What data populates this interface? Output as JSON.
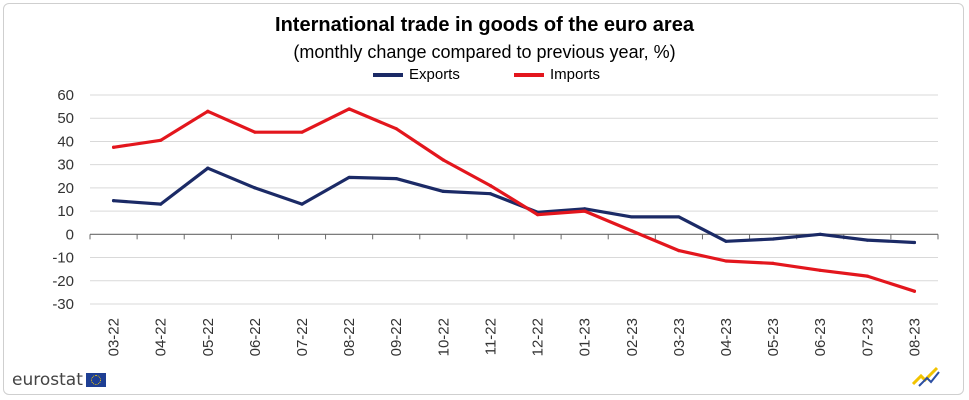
{
  "chart_data": {
    "type": "line",
    "title": "International trade in goods of the euro area",
    "subtitle": "(monthly change compared to previous year, %)",
    "categories": [
      "03-22",
      "04-22",
      "05-22",
      "06-22",
      "07-22",
      "08-22",
      "09-22",
      "10-22",
      "11-22",
      "12-22",
      "01-23",
      "02-23",
      "03-23",
      "04-23",
      "05-23",
      "06-23",
      "07-23",
      "08-23"
    ],
    "series": [
      {
        "name": "Exports",
        "color": "#1b2a66",
        "values": [
          14.5,
          13,
          28.5,
          20,
          13,
          24.5,
          24,
          18.5,
          17.5,
          9.5,
          11,
          7.5,
          7.5,
          -3,
          -2,
          0,
          -2.5,
          -3.5
        ]
      },
      {
        "name": "Imports",
        "color": "#e3161d",
        "values": [
          37.5,
          40.5,
          53,
          44,
          44,
          54,
          45.5,
          32,
          21,
          8.5,
          10,
          1.5,
          -7,
          -11.5,
          -12.5,
          -15.5,
          -18,
          -24.5
        ]
      }
    ],
    "yticks": [
      "60",
      "50",
      "40",
      "30",
      "20",
      "10",
      "0",
      "-10",
      "-20",
      "-30"
    ],
    "ytick_values": [
      60,
      50,
      40,
      30,
      20,
      10,
      0,
      -10,
      -20,
      -30
    ],
    "ylim": [
      -30,
      60
    ],
    "xlabel": "",
    "ylabel": "",
    "grid": true,
    "legend_position": "top-center"
  },
  "logo": {
    "text": "eurostat",
    "icon": "eu-flag-icon"
  }
}
